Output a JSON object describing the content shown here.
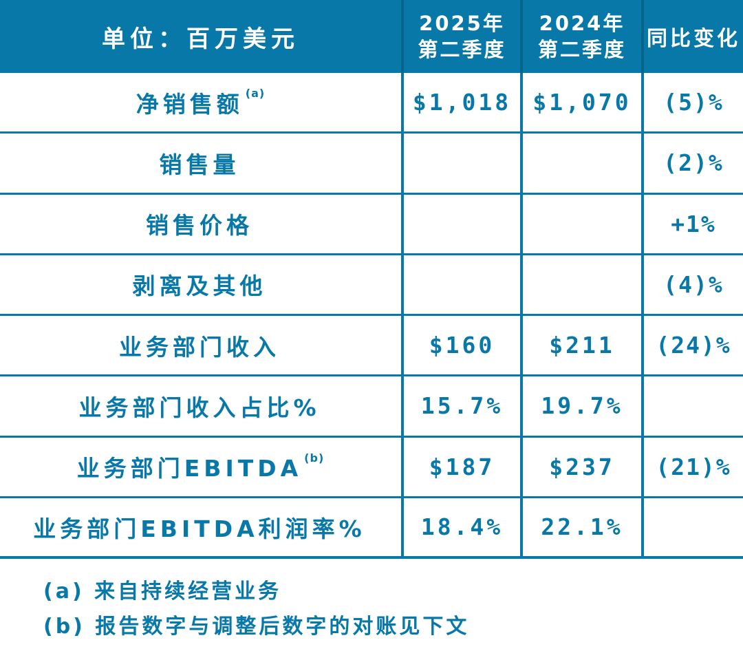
{
  "colors": {
    "accent_teal": "#0878A8",
    "header_divider": "#05638C",
    "header_text": "#FFFFFF",
    "background": "#FFFFFF"
  },
  "table": {
    "header": {
      "unit_label": "单位：百万美元",
      "col_2025": {
        "line1": "2025年",
        "line2": "第二季度"
      },
      "col_2024": {
        "line1": "2024年",
        "line2": "第二季度"
      },
      "col_yoy": "同比变化"
    },
    "rows": [
      {
        "label": "净销售额",
        "sup": "(a)",
        "q2_2025": "$1,018",
        "q2_2024": "$1,070",
        "yoy": "(5)%"
      },
      {
        "label": "销售量",
        "sup": "",
        "q2_2025": "",
        "q2_2024": "",
        "yoy": "(2)%"
      },
      {
        "label": "销售价格",
        "sup": "",
        "q2_2025": "",
        "q2_2024": "",
        "yoy": "+1%"
      },
      {
        "label": "剥离及其他",
        "sup": "",
        "q2_2025": "",
        "q2_2024": "",
        "yoy": "(4)%"
      },
      {
        "label": "业务部门收入",
        "sup": "",
        "q2_2025": "$160",
        "q2_2024": "$211",
        "yoy": "(24)%"
      },
      {
        "label": "业务部门收入占比%",
        "sup": "",
        "q2_2025": "15.7%",
        "q2_2024": "19.7%",
        "yoy": ""
      },
      {
        "label": "业务部门EBITDA",
        "sup": "(b)",
        "q2_2025": "$187",
        "q2_2024": "$237",
        "yoy": "(21)%"
      },
      {
        "label": "业务部门EBITDA利润率%",
        "sup": "",
        "q2_2025": "18.4%",
        "q2_2024": "22.1%",
        "yoy": ""
      }
    ]
  },
  "footnotes": [
    "(a) 来自持续经营业务",
    "(b) 报告数字与调整后数字的对账见下文"
  ]
}
